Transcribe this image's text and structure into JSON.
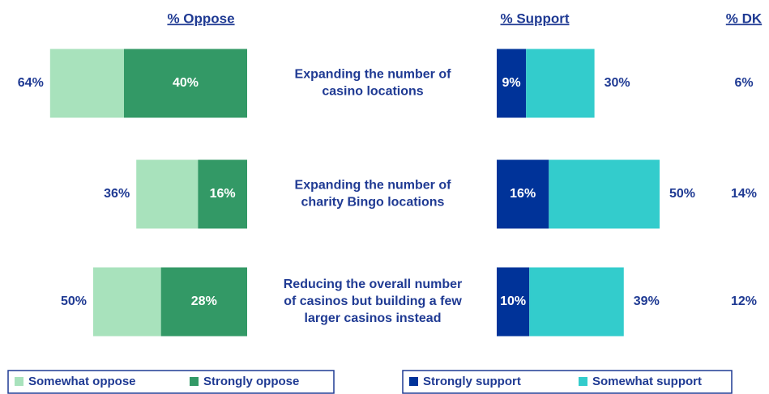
{
  "chart_data": {
    "type": "diverging_bar",
    "headers": {
      "oppose": "% Oppose",
      "support": "% Support",
      "dk": "% DK"
    },
    "categories": [
      [
        "Expanding the number of",
        "casino locations"
      ],
      [
        "Expanding the number of",
        "charity Bingo locations"
      ],
      [
        "Reducing the overall number",
        "of casinos but building a few",
        "larger casinos instead"
      ]
    ],
    "series": [
      {
        "name": "Somewhat oppose",
        "color": "#a8e2bc",
        "values": [
          24,
          20,
          22
        ]
      },
      {
        "name": "Strongly oppose",
        "color": "#339966",
        "values": [
          40,
          16,
          28
        ],
        "value_labels": [
          "40%",
          "16%",
          "28%"
        ]
      },
      {
        "name": "Strongly support",
        "color": "#003399",
        "values": [
          9,
          16,
          10
        ],
        "value_labels": [
          "9%",
          "16%",
          "10%"
        ]
      },
      {
        "name": "Somewhat support",
        "color": "#33cccc",
        "values": [
          21,
          34,
          29
        ]
      }
    ],
    "oppose_totals": {
      "values": [
        64,
        36,
        50
      ],
      "value_labels": [
        "64%",
        "36%",
        "50%"
      ]
    },
    "support_totals": {
      "values": [
        30,
        50,
        39
      ],
      "value_labels": [
        "30%",
        "50%",
        "39%"
      ]
    },
    "dk": {
      "values": [
        6,
        14,
        12
      ],
      "value_labels": [
        "6%",
        "14%",
        "12%"
      ]
    }
  }
}
